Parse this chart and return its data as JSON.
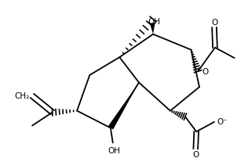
{
  "bg_color": "#ffffff",
  "line_color": "#000000",
  "line_width": 1.3,
  "font_size": 7.5,
  "figsize": [
    3.16,
    2.03
  ],
  "dpi": 100,
  "xlim": [
    0,
    316
  ],
  "ylim": [
    0,
    203
  ]
}
